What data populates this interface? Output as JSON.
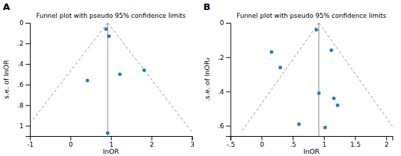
{
  "chart_data": [
    {
      "type": "scatter",
      "title": "Funnel plot with pseudo 95% confidence limits",
      "panel_label": "A",
      "x_label": "lnOR",
      "y_label": "s.e. of lnOR",
      "xlim": [
        -1,
        3
      ],
      "ylim": [
        1.1,
        0
      ],
      "xticks": [
        -1,
        0,
        1,
        2,
        3
      ],
      "yticks": [
        0,
        {
          "value": 0.2,
          "label": ".2"
        },
        {
          "value": 0.4,
          "label": ".4"
        },
        {
          "value": 0.6,
          "label": ".6"
        },
        {
          "value": 0.8,
          "label": ".8"
        },
        1
      ],
      "effect_x": 0.92,
      "effect_color": "#888888",
      "series": [
        {
          "type": "line",
          "line_style": "dashed",
          "color": "#999999",
          "x": [
            0.92,
            -1.1772
          ],
          "values": [
            0,
            1.07
          ]
        },
        {
          "type": "line",
          "line_style": "dashed",
          "color": "#999999",
          "x": [
            0.92,
            3.0172
          ],
          "values": [
            0,
            1.07
          ]
        },
        {
          "type": "scatter",
          "marker": "circle",
          "color": "#2080b8",
          "x": [
            0.88,
            0.95,
            0.42,
            0.92,
            1.82,
            1.22
          ],
          "values": [
            0.06,
            0.13,
            0.56,
            1.07,
            0.46,
            0.5
          ]
        }
      ],
      "grid": false
    },
    {
      "type": "scatter",
      "title": "Funnel plot with pseudo 95% confidence limits",
      "panel_label": "B",
      "x_label": "lnOR",
      "y_label": ".s.e. of lnOR₂",
      "xlim": [
        -0.5,
        2.1
      ],
      "ylim": [
        0.66,
        0
      ],
      "xticks": [
        {
          "value": -0.5,
          "label": "-.5"
        },
        0,
        {
          "value": 0.5,
          "label": ".5"
        },
        1,
        1.5,
        2
      ],
      "yticks": [
        0,
        {
          "value": 0.2,
          "label": ".2"
        },
        {
          "value": 0.4,
          "label": ".4"
        },
        {
          "value": 0.6,
          "label": ".6"
        }
      ],
      "effect_x": 0.92,
      "effect_color": "#888888",
      "series": [
        {
          "type": "line",
          "line_style": "dashed",
          "color": "#999999",
          "x": [
            0.92,
            -0.3148
          ],
          "values": [
            0,
            0.63
          ]
        },
        {
          "type": "line",
          "line_style": "dashed",
          "color": "#999999",
          "x": [
            0.92,
            2.1548
          ],
          "values": [
            0,
            0.63
          ]
        },
        {
          "type": "scatter",
          "marker": "circle",
          "color": "#2080b8",
          "x": [
            0.88,
            1.12,
            0.16,
            0.3,
            0.92,
            1.16,
            0.6,
            1.02,
            1.22
          ],
          "values": [
            0.04,
            0.16,
            0.17,
            0.26,
            0.41,
            0.44,
            0.59,
            0.61,
            0.48
          ]
        }
      ],
      "grid": false
    }
  ]
}
